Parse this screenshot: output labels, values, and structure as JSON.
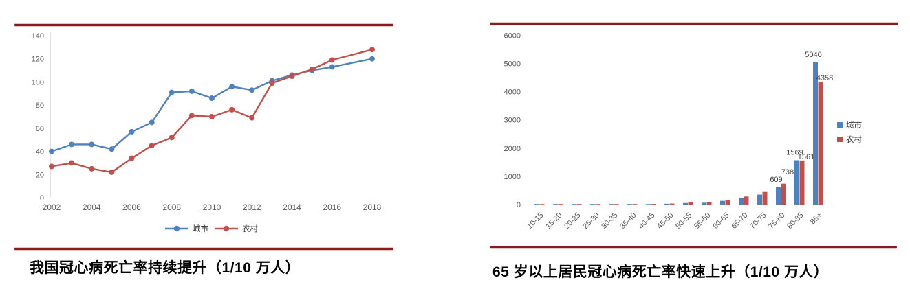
{
  "page": {
    "accent_rule_color": "#8c1a1a",
    "background": "#ffffff"
  },
  "colors": {
    "urban_blue": "#4f81bd",
    "rural_red": "#c0504d",
    "axis_gray": "#c6c6c6",
    "tick_text_gray": "#595959",
    "data_label_gray": "#404040"
  },
  "chart_data": [
    {
      "type": "line",
      "title": "我国冠心病死亡率持续提升（1/10 万人）",
      "x": [
        2002,
        2003,
        2004,
        2005,
        2006,
        2007,
        2008,
        2009,
        2010,
        2011,
        2012,
        2013,
        2014,
        2015,
        2016,
        2018
      ],
      "x_tick_labels": [
        "2002",
        "2004",
        "2006",
        "2008",
        "2010",
        "2012",
        "2014",
        "2016",
        "2018"
      ],
      "ylim": [
        0,
        140
      ],
      "y_ticks": [
        0,
        20,
        40,
        60,
        80,
        100,
        120,
        140
      ],
      "grid": false,
      "legend_position": "bottom",
      "series": [
        {
          "name": "城市",
          "color": "#4f81bd",
          "values": [
            40,
            46,
            46,
            42,
            57,
            65,
            91,
            92,
            86,
            96,
            93,
            101,
            106,
            110,
            113,
            120
          ]
        },
        {
          "name": "农村",
          "color": "#c0504d",
          "values": [
            27,
            30,
            25,
            22,
            34,
            45,
            52,
            71,
            70,
            76,
            69,
            99,
            105,
            111,
            119,
            128
          ]
        }
      ]
    },
    {
      "type": "bar",
      "title": "65 岁以上居民冠心病死亡率快速上升（1/10 万人）",
      "categories": [
        "10-15",
        "15-20",
        "20-25",
        "25-30",
        "30-35",
        "35-40",
        "40-45",
        "45-50",
        "50-55",
        "55-60",
        "60-65",
        "65-70",
        "70-75",
        "75-80",
        "80-85",
        "85+"
      ],
      "ylim": [
        0,
        6000
      ],
      "y_ticks": [
        0,
        1000,
        2000,
        3000,
        4000,
        5000,
        6000
      ],
      "grid": false,
      "legend_position": "right",
      "series": [
        {
          "name": "城市",
          "color": "#4f81bd",
          "values": [
            1,
            2,
            3,
            5,
            8,
            12,
            18,
            28,
            55,
            65,
            130,
            245,
            350,
            609,
            1569,
            5040
          ],
          "data_labels": [
            null,
            null,
            null,
            null,
            null,
            null,
            null,
            null,
            null,
            null,
            null,
            null,
            null,
            "609",
            "1569",
            "5040"
          ]
        },
        {
          "name": "农村",
          "color": "#c0504d",
          "values": [
            1,
            3,
            4,
            7,
            10,
            15,
            23,
            35,
            75,
            85,
            165,
            285,
            445,
            738,
            1561,
            4358
          ],
          "data_labels": [
            null,
            null,
            null,
            null,
            null,
            null,
            null,
            null,
            null,
            null,
            null,
            null,
            null,
            "738",
            "1561",
            "4358"
          ]
        }
      ]
    }
  ]
}
